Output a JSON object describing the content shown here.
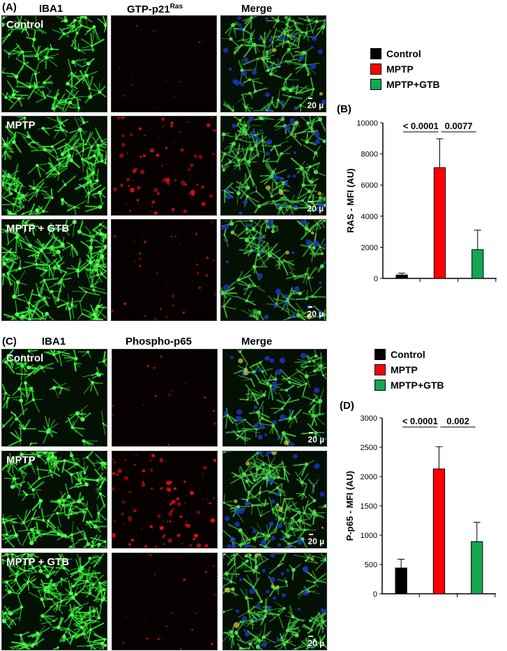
{
  "sectionA": {
    "tag": "(A)",
    "headers": [
      "IBA1",
      "GTP-p21",
      "Merge"
    ],
    "header_sup": "Ras",
    "rows": [
      "Control",
      "MPTP",
      "MPTP + GTB"
    ],
    "scale": "20 µ"
  },
  "sectionC": {
    "tag": "(C)",
    "headers": [
      "IBA1",
      "Phospho-p65",
      "Merge"
    ],
    "rows": [
      "Control",
      "MPTP",
      "MPTP + GTB"
    ],
    "scale": "20 µ"
  },
  "legend": {
    "items": [
      {
        "label": "Control",
        "color": "#000000"
      },
      {
        "label": "MPTP",
        "color": "#ff0000"
      },
      {
        "label": "MPTP+GTB",
        "color": "#14a650"
      }
    ]
  },
  "chart_data": [
    {
      "type": "bar",
      "tag": "(B)",
      "categories": [
        "Control",
        "MPTP",
        "MPTP+GTB"
      ],
      "values": [
        220,
        7120,
        1850
      ],
      "errors": [
        120,
        1850,
        1250
      ],
      "colors": [
        "#000000",
        "#ff0000",
        "#14a650"
      ],
      "ylabel": "RAS - MFI (AU)",
      "ylim": [
        0,
        10000
      ],
      "yticks": [
        0,
        2000,
        4000,
        6000,
        8000,
        10000
      ],
      "comparisons": [
        {
          "from": 0,
          "to": 1,
          "label": "< 0.0001"
        },
        {
          "from": 1,
          "to": 2,
          "label": "0.0077"
        }
      ]
    },
    {
      "type": "bar",
      "tag": "(D)",
      "categories": [
        "Control",
        "MPTP",
        "MPTP+GTB"
      ],
      "values": [
        440,
        2130,
        890
      ],
      "errors": [
        150,
        380,
        330
      ],
      "colors": [
        "#000000",
        "#ff0000",
        "#14a650"
      ],
      "ylabel": "P-p65 - MFI (AU)",
      "ylim": [
        0,
        3000
      ],
      "yticks": [
        0,
        500,
        1000,
        1500,
        2000,
        2500,
        3000
      ],
      "comparisons": [
        {
          "from": 0,
          "to": 1,
          "label": "< 0.0001"
        },
        {
          "from": 1,
          "to": 2,
          "label": "0.002"
        }
      ]
    }
  ]
}
